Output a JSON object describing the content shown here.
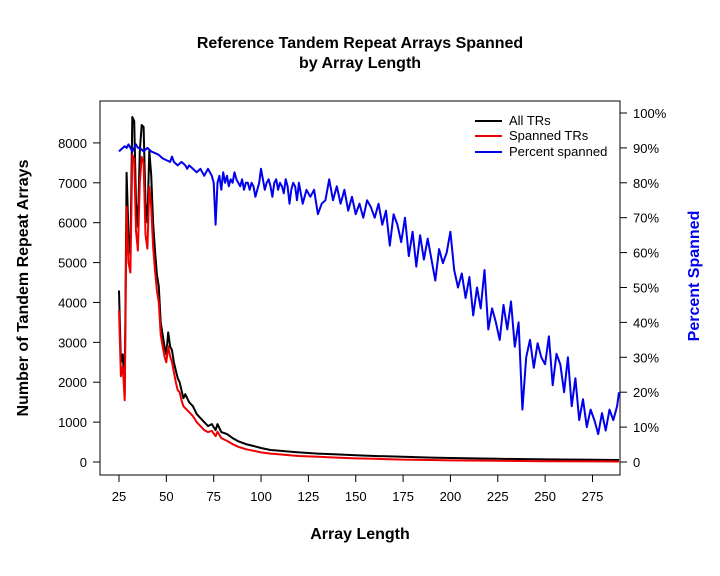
{
  "chart_data": {
    "type": "line",
    "title": [
      "Reference Tandem Repeat Arrays Spanned",
      "by Array Length"
    ],
    "xlabel": "Array Length",
    "ylabel": "Number of Tandem Repeat Arrays",
    "y2label": "Percent Spanned",
    "xlim": [
      25,
      289
    ],
    "ylim": [
      0,
      8700
    ],
    "y2lim": [
      0,
      100
    ],
    "x_ticks": [
      "25",
      "50",
      "75",
      "100",
      "125",
      "150",
      "175",
      "200",
      "225",
      "250",
      "275"
    ],
    "y_ticks": [
      "0",
      "1000",
      "2000",
      "3000",
      "4000",
      "5000",
      "6000",
      "7000",
      "8000"
    ],
    "y2_ticks": [
      "0",
      "10%",
      "20%",
      "30%",
      "40%",
      "50%",
      "60%",
      "70%",
      "80%",
      "90%",
      "100%"
    ],
    "grid": false,
    "legend_position": "top-right",
    "colors": {
      "all": "#000000",
      "spanned": "#ee0000",
      "percent": "#0000ee",
      "axis": "#000000",
      "y2label": "#0000ee"
    },
    "series": [
      {
        "name": "All TRs",
        "axis": "left",
        "points": [
          [
            25,
            4300
          ],
          [
            26,
            2500
          ],
          [
            27,
            2700
          ],
          [
            28,
            1700
          ],
          [
            29,
            7250
          ],
          [
            30,
            5700
          ],
          [
            31,
            5200
          ],
          [
            32,
            8650
          ],
          [
            33,
            8550
          ],
          [
            34,
            6500
          ],
          [
            35,
            5900
          ],
          [
            36,
            7800
          ],
          [
            37,
            8450
          ],
          [
            38,
            8400
          ],
          [
            39,
            6500
          ],
          [
            40,
            6000
          ],
          [
            41,
            7800
          ],
          [
            42,
            7200
          ],
          [
            43,
            6000
          ],
          [
            44,
            5300
          ],
          [
            45,
            4700
          ],
          [
            46,
            4400
          ],
          [
            47,
            3500
          ],
          [
            48,
            3200
          ],
          [
            49,
            2900
          ],
          [
            50,
            2700
          ],
          [
            51,
            3250
          ],
          [
            52,
            2900
          ],
          [
            53,
            2800
          ],
          [
            54,
            2500
          ],
          [
            55,
            2300
          ],
          [
            56,
            2100
          ],
          [
            57,
            2000
          ],
          [
            58,
            1800
          ],
          [
            59,
            1600
          ],
          [
            60,
            1700
          ],
          [
            62,
            1500
          ],
          [
            64,
            1400
          ],
          [
            66,
            1200
          ],
          [
            68,
            1100
          ],
          [
            70,
            1000
          ],
          [
            72,
            900
          ],
          [
            74,
            950
          ],
          [
            76,
            800
          ],
          [
            77,
            950
          ],
          [
            79,
            750
          ],
          [
            82,
            700
          ],
          [
            85,
            600
          ],
          [
            88,
            520
          ],
          [
            92,
            450
          ],
          [
            96,
            400
          ],
          [
            100,
            350
          ],
          [
            105,
            300
          ],
          [
            110,
            280
          ],
          [
            115,
            260
          ],
          [
            120,
            240
          ],
          [
            130,
            210
          ],
          [
            140,
            190
          ],
          [
            150,
            170
          ],
          [
            160,
            150
          ],
          [
            175,
            130
          ],
          [
            190,
            110
          ],
          [
            200,
            100
          ],
          [
            225,
            80
          ],
          [
            250,
            65
          ],
          [
            275,
            55
          ],
          [
            289,
            50
          ]
        ]
      },
      {
        "name": "Spanned TRs",
        "axis": "left",
        "points": [
          [
            25,
            3800
          ],
          [
            26,
            2150
          ],
          [
            27,
            2400
          ],
          [
            28,
            1550
          ],
          [
            29,
            6400
          ],
          [
            30,
            5000
          ],
          [
            31,
            4750
          ],
          [
            32,
            7700
          ],
          [
            33,
            7600
          ],
          [
            34,
            5800
          ],
          [
            35,
            5300
          ],
          [
            36,
            7000
          ],
          [
            37,
            7650
          ],
          [
            38,
            7500
          ],
          [
            39,
            5700
          ],
          [
            40,
            5350
          ],
          [
            41,
            6900
          ],
          [
            42,
            6400
          ],
          [
            43,
            5400
          ],
          [
            44,
            4800
          ],
          [
            45,
            4300
          ],
          [
            46,
            4000
          ],
          [
            47,
            3200
          ],
          [
            48,
            2900
          ],
          [
            49,
            2650
          ],
          [
            50,
            2500
          ],
          [
            51,
            2900
          ],
          [
            52,
            2650
          ],
          [
            53,
            2500
          ],
          [
            54,
            2250
          ],
          [
            55,
            2000
          ],
          [
            56,
            1800
          ],
          [
            57,
            1750
          ],
          [
            58,
            1550
          ],
          [
            59,
            1400
          ],
          [
            60,
            1350
          ],
          [
            62,
            1250
          ],
          [
            64,
            1150
          ],
          [
            66,
            1000
          ],
          [
            68,
            900
          ],
          [
            70,
            800
          ],
          [
            72,
            750
          ],
          [
            74,
            780
          ],
          [
            76,
            650
          ],
          [
            77,
            760
          ],
          [
            79,
            600
          ],
          [
            82,
            530
          ],
          [
            85,
            450
          ],
          [
            88,
            380
          ],
          [
            92,
            320
          ],
          [
            96,
            280
          ],
          [
            100,
            240
          ],
          [
            105,
            210
          ],
          [
            110,
            190
          ],
          [
            115,
            170
          ],
          [
            120,
            150
          ],
          [
            130,
            130
          ],
          [
            140,
            110
          ],
          [
            150,
            90
          ],
          [
            160,
            80
          ],
          [
            175,
            60
          ],
          [
            190,
            50
          ],
          [
            200,
            40
          ],
          [
            225,
            30
          ],
          [
            250,
            20
          ],
          [
            275,
            15
          ],
          [
            289,
            12
          ]
        ]
      },
      {
        "name": "Percent spanned",
        "axis": "right",
        "points": [
          [
            25,
            89
          ],
          [
            26,
            89.5
          ],
          [
            27,
            90
          ],
          [
            28,
            90.5
          ],
          [
            29,
            90
          ],
          [
            30,
            91
          ],
          [
            31,
            90
          ],
          [
            32,
            89
          ],
          [
            33,
            90
          ],
          [
            34,
            91
          ],
          [
            35,
            90
          ],
          [
            36,
            90
          ],
          [
            37,
            89.5
          ],
          [
            38,
            89
          ],
          [
            40,
            90
          ],
          [
            42,
            89
          ],
          [
            44,
            88.5
          ],
          [
            46,
            88
          ],
          [
            48,
            87
          ],
          [
            50,
            86.5
          ],
          [
            52,
            86
          ],
          [
            53,
            87.5
          ],
          [
            54,
            86
          ],
          [
            56,
            85
          ],
          [
            58,
            86
          ],
          [
            60,
            85
          ],
          [
            61,
            84
          ],
          [
            62,
            85
          ],
          [
            64,
            84
          ],
          [
            66,
            83
          ],
          [
            68,
            84
          ],
          [
            70,
            82
          ],
          [
            72,
            84
          ],
          [
            74,
            82
          ],
          [
            75,
            80
          ],
          [
            76,
            68
          ],
          [
            77,
            80
          ],
          [
            78,
            82
          ],
          [
            79,
            78
          ],
          [
            80,
            83
          ],
          [
            81,
            80
          ],
          [
            82,
            82
          ],
          [
            83,
            79
          ],
          [
            84,
            81
          ],
          [
            85,
            80
          ],
          [
            86,
            83
          ],
          [
            87,
            81
          ],
          [
            88,
            80
          ],
          [
            89,
            79
          ],
          [
            90,
            81
          ],
          [
            91,
            78
          ],
          [
            92,
            80
          ],
          [
            93,
            80
          ],
          [
            94,
            78
          ],
          [
            95,
            80
          ],
          [
            96,
            79
          ],
          [
            97,
            76
          ],
          [
            98,
            78
          ],
          [
            99,
            80
          ],
          [
            100,
            84
          ],
          [
            101,
            81
          ],
          [
            102,
            78
          ],
          [
            103,
            80
          ],
          [
            104,
            81
          ],
          [
            105,
            79
          ],
          [
            106,
            76
          ],
          [
            107,
            80
          ],
          [
            108,
            81
          ],
          [
            109,
            78
          ],
          [
            110,
            80
          ],
          [
            111,
            79
          ],
          [
            112,
            77
          ],
          [
            113,
            81
          ],
          [
            114,
            79
          ],
          [
            115,
            74
          ],
          [
            116,
            78
          ],
          [
            117,
            80
          ],
          [
            118,
            79
          ],
          [
            119,
            75
          ],
          [
            120,
            80
          ],
          [
            122,
            74
          ],
          [
            124,
            78
          ],
          [
            126,
            76
          ],
          [
            128,
            78
          ],
          [
            130,
            71
          ],
          [
            132,
            74
          ],
          [
            134,
            75
          ],
          [
            136,
            81
          ],
          [
            138,
            75
          ],
          [
            140,
            79
          ],
          [
            142,
            74
          ],
          [
            144,
            78
          ],
          [
            146,
            72
          ],
          [
            148,
            76
          ],
          [
            150,
            71
          ],
          [
            152,
            74
          ],
          [
            154,
            70
          ],
          [
            156,
            75
          ],
          [
            158,
            73
          ],
          [
            160,
            70
          ],
          [
            162,
            74
          ],
          [
            164,
            68
          ],
          [
            166,
            72
          ],
          [
            168,
            62
          ],
          [
            170,
            71
          ],
          [
            172,
            68
          ],
          [
            174,
            63
          ],
          [
            176,
            70
          ],
          [
            178,
            59
          ],
          [
            180,
            66
          ],
          [
            182,
            56
          ],
          [
            184,
            65
          ],
          [
            186,
            58
          ],
          [
            188,
            64
          ],
          [
            190,
            58
          ],
          [
            192,
            52
          ],
          [
            194,
            61
          ],
          [
            196,
            57
          ],
          [
            198,
            60
          ],
          [
            200,
            66
          ],
          [
            202,
            55
          ],
          [
            204,
            50
          ],
          [
            206,
            54
          ],
          [
            208,
            47
          ],
          [
            210,
            53
          ],
          [
            212,
            42
          ],
          [
            214,
            50
          ],
          [
            216,
            44
          ],
          [
            218,
            55
          ],
          [
            220,
            38
          ],
          [
            222,
            44
          ],
          [
            224,
            40
          ],
          [
            226,
            35
          ],
          [
            228,
            45
          ],
          [
            230,
            38
          ],
          [
            232,
            46
          ],
          [
            234,
            33
          ],
          [
            236,
            40
          ],
          [
            238,
            15
          ],
          [
            240,
            30
          ],
          [
            242,
            35
          ],
          [
            244,
            27
          ],
          [
            246,
            34
          ],
          [
            248,
            30
          ],
          [
            250,
            28
          ],
          [
            252,
            36
          ],
          [
            254,
            22
          ],
          [
            256,
            31
          ],
          [
            258,
            28
          ],
          [
            260,
            20
          ],
          [
            262,
            30
          ],
          [
            264,
            16
          ],
          [
            266,
            24
          ],
          [
            268,
            12
          ],
          [
            270,
            18
          ],
          [
            272,
            10
          ],
          [
            274,
            15
          ],
          [
            276,
            12
          ],
          [
            278,
            8
          ],
          [
            280,
            14
          ],
          [
            282,
            9
          ],
          [
            284,
            15
          ],
          [
            286,
            12
          ],
          [
            288,
            16
          ],
          [
            289,
            20
          ]
        ]
      }
    ]
  }
}
